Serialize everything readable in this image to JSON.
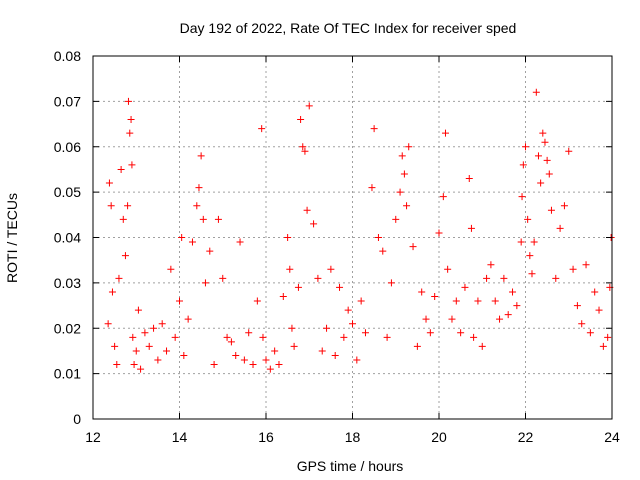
{
  "chart_data": {
    "type": "scatter",
    "title": "Day 192 of 2022, Rate Of TEC Index for receiver sped",
    "xlabel": "GPS time / hours",
    "ylabel": "ROTI / TECUs",
    "xlim": [
      12,
      24
    ],
    "ylim": [
      0,
      0.08
    ],
    "x_ticks": [
      12,
      14,
      16,
      18,
      20,
      22,
      24
    ],
    "x_tick_labels": [
      "12",
      "14",
      "16",
      "18",
      "20",
      "22",
      "24"
    ],
    "y_ticks": [
      0,
      0.01,
      0.02,
      0.03,
      0.04,
      0.05,
      0.06,
      0.07,
      0.08
    ],
    "y_tick_labels": [
      "0",
      "0.01",
      "0.02",
      "0.03",
      "0.04",
      "0.05",
      "0.06",
      "0.07",
      "0.08"
    ],
    "grid": true,
    "marker": "+",
    "color": "#ff0000",
    "series": [
      {
        "name": "ROTI",
        "x": [
          12.35,
          12.38,
          12.42,
          12.45,
          12.5,
          12.55,
          12.6,
          12.65,
          12.7,
          12.75,
          12.8,
          12.82,
          12.85,
          12.88,
          12.9,
          12.92,
          12.95,
          13.0,
          13.05,
          13.1,
          13.2,
          13.3,
          13.4,
          13.5,
          13.6,
          13.7,
          13.8,
          13.9,
          14.0,
          14.05,
          14.1,
          14.2,
          14.3,
          14.4,
          14.45,
          14.5,
          14.55,
          14.6,
          14.7,
          14.8,
          14.9,
          15.0,
          15.1,
          15.2,
          15.3,
          15.4,
          15.5,
          15.6,
          15.7,
          15.8,
          15.9,
          15.93,
          16.0,
          16.1,
          16.2,
          16.3,
          16.4,
          16.5,
          16.55,
          16.6,
          16.65,
          16.75,
          16.8,
          16.85,
          16.9,
          16.95,
          17.0,
          17.1,
          17.2,
          17.3,
          17.4,
          17.5,
          17.6,
          17.7,
          17.8,
          17.9,
          18.0,
          18.1,
          18.2,
          18.3,
          18.45,
          18.5,
          18.6,
          18.7,
          18.8,
          18.9,
          19.0,
          19.1,
          19.15,
          19.2,
          19.25,
          19.3,
          19.4,
          19.5,
          19.6,
          19.7,
          19.8,
          19.9,
          20.0,
          20.1,
          20.15,
          20.2,
          20.3,
          20.4,
          20.5,
          20.6,
          20.7,
          20.75,
          20.8,
          20.9,
          21.0,
          21.1,
          21.2,
          21.3,
          21.4,
          21.5,
          21.6,
          21.7,
          21.8,
          21.9,
          21.92,
          21.95,
          22.0,
          22.05,
          22.1,
          22.15,
          22.2,
          22.25,
          22.3,
          22.35,
          22.4,
          22.45,
          22.5,
          22.55,
          22.6,
          22.7,
          22.8,
          22.9,
          23.0,
          23.1,
          23.2,
          23.3,
          23.4,
          23.5,
          23.6,
          23.7,
          23.8,
          23.9,
          23.95,
          23.98
        ],
        "y": [
          0.021,
          0.052,
          0.047,
          0.028,
          0.016,
          0.012,
          0.031,
          0.055,
          0.044,
          0.036,
          0.047,
          0.07,
          0.063,
          0.066,
          0.056,
          0.018,
          0.012,
          0.015,
          0.024,
          0.011,
          0.019,
          0.016,
          0.02,
          0.013,
          0.021,
          0.015,
          0.033,
          0.018,
          0.026,
          0.04,
          0.014,
          0.022,
          0.039,
          0.047,
          0.051,
          0.058,
          0.044,
          0.03,
          0.037,
          0.012,
          0.044,
          0.031,
          0.018,
          0.017,
          0.014,
          0.039,
          0.013,
          0.019,
          0.012,
          0.026,
          0.064,
          0.018,
          0.013,
          0.011,
          0.015,
          0.012,
          0.027,
          0.04,
          0.033,
          0.02,
          0.016,
          0.029,
          0.066,
          0.06,
          0.059,
          0.046,
          0.069,
          0.043,
          0.031,
          0.015,
          0.02,
          0.033,
          0.014,
          0.029,
          0.018,
          0.024,
          0.021,
          0.013,
          0.026,
          0.019,
          0.051,
          0.064,
          0.04,
          0.037,
          0.018,
          0.03,
          0.044,
          0.05,
          0.058,
          0.054,
          0.047,
          0.06,
          0.038,
          0.016,
          0.028,
          0.022,
          0.019,
          0.027,
          0.041,
          0.049,
          0.063,
          0.033,
          0.022,
          0.026,
          0.019,
          0.029,
          0.053,
          0.042,
          0.018,
          0.026,
          0.016,
          0.031,
          0.034,
          0.026,
          0.022,
          0.031,
          0.023,
          0.028,
          0.025,
          0.039,
          0.049,
          0.056,
          0.06,
          0.044,
          0.036,
          0.032,
          0.039,
          0.072,
          0.058,
          0.052,
          0.063,
          0.061,
          0.057,
          0.054,
          0.046,
          0.031,
          0.042,
          0.047,
          0.059,
          0.033,
          0.025,
          0.021,
          0.034,
          0.019,
          0.028,
          0.024,
          0.016,
          0.018,
          0.029,
          0.04
        ]
      }
    ]
  }
}
